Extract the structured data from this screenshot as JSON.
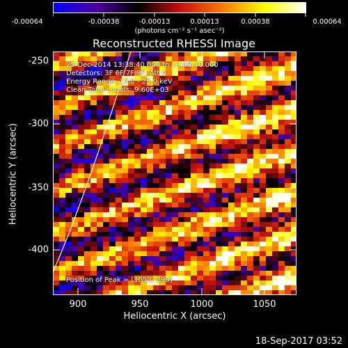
{
  "colorbar": {
    "ticks": [
      "-0.00064",
      "-0.00038",
      "-0.00013",
      "0.00013",
      "0.00038",
      "0.00064"
    ],
    "units": "(photons cm⁻² s⁻¹ asec⁻²)",
    "colors": [
      "#0000ff",
      "#4b00a0",
      "#000000",
      "#c81010",
      "#ff7800",
      "#ffff00",
      "#ffffff"
    ]
  },
  "title": "Reconstructed RHESSI Image",
  "info": {
    "time_range": "25-Dec-2014 13:38:40.000 to 13:48:40.000",
    "detectors": "Detectors: 3F 6F 7F 9F, Att 0",
    "energy": "Energy Range: 12.0 - 25.0 keV",
    "method": "Clean     Total counts: 9.60E+03",
    "peak": "Position of Peak = [1053,-290]"
  },
  "axes": {
    "xlabel": "Heliocentric X (arcsec)",
    "ylabel": "Heliocentric Y (arcsec)",
    "x_ticks": [
      "900",
      "950",
      "1000",
      "1050"
    ],
    "y_ticks": [
      "-250",
      "-300",
      "-350",
      "-400"
    ]
  },
  "footer": "18-Sep-2017 03:52"
}
